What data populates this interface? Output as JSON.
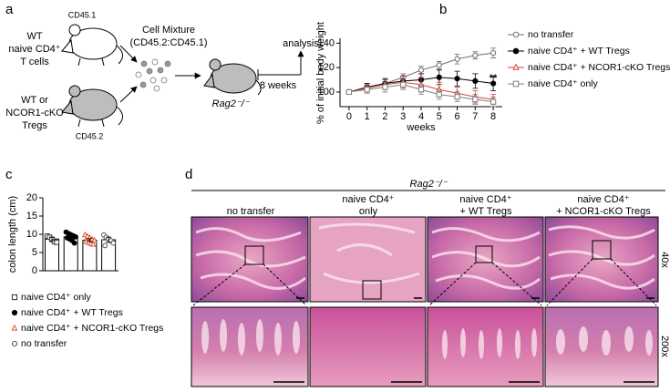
{
  "panels": [
    "a",
    "b",
    "c",
    "d"
  ],
  "diagram": {
    "donor1_label": [
      "WT",
      "naive CD4⁺",
      "T cells"
    ],
    "donor1_marker": "CD45.1",
    "donor2_label": [
      "WT or",
      "NCOR1-cKO",
      "Tregs"
    ],
    "donor2_marker": "CD45.2",
    "mixture": [
      "Cell Mixture",
      "(CD45.2:CD45.1)"
    ],
    "recipient": "Rag2⁻/⁻",
    "duration": "8 weeks",
    "endpoint": "analysis"
  },
  "histology": {
    "header": "Rag2⁻/⁻",
    "columns": [
      [
        "no transfer"
      ],
      [
        "naive CD4⁺",
        "only"
      ],
      [
        "naive CD4⁺",
        "+ WT Tregs"
      ],
      [
        "naive CD4⁺",
        "+ NCOR1-cKO Tregs"
      ]
    ],
    "rows": [
      "40x",
      "200x"
    ]
  },
  "chart_data": [
    {
      "type": "line",
      "x": [
        0,
        1,
        2,
        3,
        4,
        5,
        6,
        7,
        8
      ],
      "xlim": [
        -0.5,
        8.5
      ],
      "xticks": [
        0,
        1,
        2,
        3,
        4,
        5,
        6,
        7,
        8
      ],
      "ylim": [
        88,
        144
      ],
      "yticks": [
        100,
        120,
        140
      ],
      "xlabel": "weeks",
      "ylabel": "% of initial body weight",
      "annotations": [
        "**"
      ],
      "legend": "right",
      "series": [
        {
          "name": "no transfer",
          "color": "#6e6e6e",
          "marker": "circle-open",
          "values": [
            100,
            104,
            107,
            112,
            118,
            122,
            127,
            130,
            132
          ],
          "errors": [
            1,
            2,
            3,
            3,
            3,
            3,
            4,
            3,
            4
          ]
        },
        {
          "name": "naive CD4⁺ + WT Tregs",
          "color": "#000000",
          "marker": "circle-filled",
          "values": [
            100,
            104,
            107,
            109,
            110,
            112,
            111,
            109,
            107
          ],
          "errors": [
            1,
            3,
            4,
            4,
            5,
            6,
            6,
            6,
            6
          ]
        },
        {
          "name": "naive CD4⁺ + NCOR1-cKO Tregs",
          "color": "#d9413a",
          "marker": "triangle-open",
          "values": [
            100,
            103,
            106,
            108,
            106,
            102,
            99,
            96,
            94
          ],
          "errors": [
            1,
            3,
            4,
            5,
            6,
            6,
            5,
            5,
            4
          ]
        },
        {
          "name": "naive CD4⁺ only",
          "color": "#808080",
          "marker": "square-open",
          "values": [
            100,
            102,
            104,
            106,
            102,
            98,
            96,
            94,
            92
          ],
          "errors": [
            1,
            3,
            4,
            4,
            4,
            4,
            4,
            4,
            4
          ]
        }
      ]
    },
    {
      "type": "bar",
      "categories": [
        null,
        null,
        null,
        null
      ],
      "values": [
        8.7,
        9.3,
        8.4,
        8.5
      ],
      "errors": [
        0.5,
        0.4,
        0.4,
        0.7
      ],
      "ylim": [
        0,
        20
      ],
      "yticks": [
        0,
        5,
        10,
        15,
        20
      ],
      "ylabel": "colon length (cm)",
      "series": [
        {
          "name": "naive CD4⁺ only",
          "color": "#333333",
          "marker": "square-open",
          "points": [
            9.5,
            9.2,
            8.6,
            8.0,
            7.8
          ]
        },
        {
          "name": "naive CD4⁺ + WT Tregs",
          "color": "#000000",
          "marker": "circle-filled",
          "points": [
            10.6,
            10.2,
            9.9,
            9.6,
            9.3,
            9.0,
            8.7,
            8.3,
            7.6
          ]
        },
        {
          "name": "naive CD4⁺ + NCOR1-cKO Tregs",
          "color": "#e0533a",
          "marker": "triangle-open",
          "points": [
            9.8,
            9.4,
            9.0,
            8.6,
            8.3,
            8.0,
            7.7,
            7.4,
            7.2
          ]
        },
        {
          "name": "no transfer",
          "color": "#555555",
          "marker": "circle-open",
          "points": [
            9.8,
            9.2,
            8.7,
            8.2,
            7.6,
            6.9
          ]
        }
      ]
    }
  ]
}
